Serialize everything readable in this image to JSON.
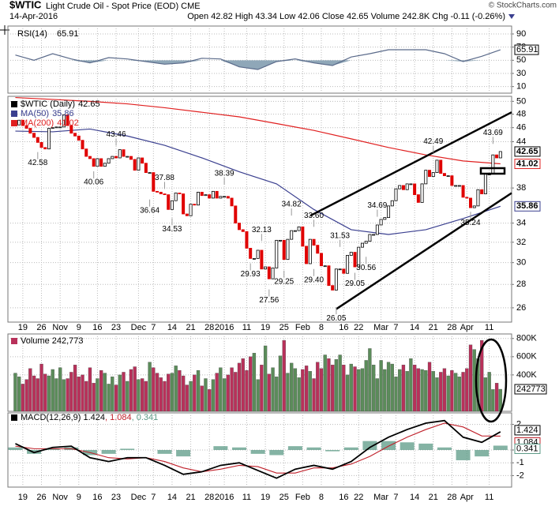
{
  "header": {
    "symbol": "$WTIC",
    "title": "Light Crude Oil - Spot Price (EOD) CME",
    "date": "14-Apr-2016",
    "quote": "Open 42.82 High 43.34 Low 42.06 Close 42.65 Volume 242.8K Chg -0.11 (-0.26%)",
    "credit": "© StockCharts.com"
  },
  "x_axis": {
    "xlim": [
      -2,
      133
    ],
    "xticks": [
      {
        "value": 2,
        "label": "19"
      },
      {
        "value": 7,
        "label": "26"
      },
      {
        "value": 12,
        "label": "Nov"
      },
      {
        "value": 17,
        "label": "9"
      },
      {
        "value": 22,
        "label": "16"
      },
      {
        "value": 27,
        "label": "23"
      },
      {
        "value": 33,
        "label": "Dec"
      },
      {
        "value": 37,
        "label": "7"
      },
      {
        "value": 42,
        "label": "14"
      },
      {
        "value": 47,
        "label": "21"
      },
      {
        "value": 52,
        "label": "28"
      },
      {
        "value": 56,
        "label": "2016"
      },
      {
        "value": 62,
        "label": "11"
      },
      {
        "value": 67,
        "label": "19"
      },
      {
        "value": 72,
        "label": "25"
      },
      {
        "value": 77,
        "label": "Feb"
      },
      {
        "value": 82,
        "label": "8"
      },
      {
        "value": 88,
        "label": "16"
      },
      {
        "value": 92,
        "label": "22"
      },
      {
        "value": 98,
        "label": "Mar"
      },
      {
        "value": 102,
        "label": "7"
      },
      {
        "value": 107,
        "label": "14"
      },
      {
        "value": 112,
        "label": "21"
      },
      {
        "value": 117,
        "label": "28"
      },
      {
        "value": 121,
        "label": "Apr"
      },
      {
        "value": 127,
        "label": "11"
      }
    ]
  },
  "chart_data": [
    {
      "type": "line",
      "title": "RSI(14)",
      "color": "#5a6a8a",
      "x": [
        0,
        5,
        10,
        15,
        20,
        25,
        30,
        35,
        40,
        45,
        50,
        55,
        60,
        65,
        70,
        75,
        80,
        85,
        90,
        95,
        100,
        105,
        110,
        115,
        120,
        125,
        130
      ],
      "values": [
        58,
        50,
        60,
        52,
        46,
        54,
        52,
        48,
        44,
        46,
        53,
        52,
        40,
        36,
        48,
        52,
        46,
        42,
        55,
        60,
        66,
        66,
        66,
        60,
        48,
        56,
        65.91
      ],
      "ylim": [
        0,
        102
      ],
      "yticks": [
        90,
        70,
        50,
        30,
        10
      ],
      "grid": true
    },
    {
      "type": "candlestick",
      "log_scale": true,
      "up_color": "#000000",
      "down_color": "#e00000",
      "close": [
        46.4,
        47.1,
        46.3,
        45.9,
        45.2,
        44.6,
        43.9,
        43.2,
        43.0,
        45.9,
        46.0,
        46.1,
        46.1,
        47.9,
        46.3,
        45.2,
        44.8,
        44.2,
        43.0,
        42.0,
        41.7,
        40.7,
        41.7,
        40.7,
        41.1,
        41.7,
        42.0,
        41.8,
        42.9,
        42.0,
        42.0,
        41.6,
        40.2,
        41.8,
        41.1,
        39.9,
        39.9,
        37.6,
        37.5,
        37.3,
        37.2,
        35.5,
        36.5,
        37.4,
        37.3,
        35.0,
        34.8,
        36.1,
        36.0,
        37.5,
        37.1,
        37.2,
        36.8,
        37.6,
        36.8,
        37.0,
        37.0,
        36.8,
        35.9,
        34.0,
        33.3,
        33.1,
        31.4,
        30.4,
        30.4,
        31.2,
        29.4,
        29.6,
        28.5,
        29.5,
        32.2,
        32.2,
        30.3,
        32.3,
        33.2,
        33.2,
        33.6,
        31.6,
        29.9,
        32.3,
        31.7,
        30.9,
        29.7,
        29.7,
        27.9,
        27.5,
        29.4,
        29.4,
        29.0,
        30.7,
        31.0,
        29.6,
        31.5,
        31.9,
        32.1,
        32.8,
        32.8,
        33.8,
        34.4,
        34.6,
        35.9,
        36.5,
        37.9,
        38.3,
        37.8,
        38.5,
        38.5,
        37.2,
        36.3,
        38.5,
        40.2,
        39.4,
        39.9,
        41.5,
        39.8,
        39.5,
        39.5,
        38.3,
        38.3,
        38.3,
        36.9,
        36.8,
        35.7,
        35.9,
        37.8,
        37.3,
        39.7,
        39.7,
        42.2,
        41.8,
        42.65
      ],
      "series": [
        {
          "name": "$WTIC (Daily)",
          "color": "#000000",
          "role": "price"
        },
        {
          "name": "MA(50)",
          "color": "#3a3f8f",
          "x": [
            0,
            10,
            20,
            30,
            40,
            50,
            60,
            70,
            80,
            90,
            100,
            110,
            120,
            130
          ],
          "values": [
            45.5,
            45.4,
            45.8,
            44.8,
            43.5,
            41.8,
            40.0,
            38.5,
            35.5,
            33.3,
            32.8,
            33.3,
            34.5,
            35.86
          ]
        },
        {
          "name": "MA(200)",
          "color": "#e02020",
          "x": [
            0,
            10,
            20,
            30,
            40,
            50,
            60,
            70,
            80,
            90,
            100,
            110,
            120,
            130
          ],
          "values": [
            50.6,
            50.3,
            50.0,
            49.6,
            49.0,
            48.3,
            47.6,
            46.6,
            45.6,
            44.4,
            43.2,
            42.2,
            41.4,
            41.02
          ]
        }
      ],
      "ylim": [
        24.85,
        50.8
      ],
      "yticks": [
        50,
        48,
        46,
        44,
        38,
        34,
        32,
        30,
        28,
        26
      ],
      "grid": true,
      "trendlines": [
        {
          "x": [
            79,
            133
          ],
          "y": [
            34.8,
            48.3
          ]
        },
        {
          "x": [
            86,
            133
          ],
          "y": [
            25.9,
            37.4
          ]
        }
      ],
      "annotations": [
        {
          "value": 42.58,
          "label": "42.58",
          "x": 6,
          "pos": "below"
        },
        {
          "value": 43.46,
          "label": "43.46",
          "x": 27,
          "pos": "above"
        },
        {
          "value": 40.06,
          "label": "40.06",
          "x": 21,
          "pos": "below"
        },
        {
          "value": 37.88,
          "label": "37.88",
          "x": 40,
          "pos": "above"
        },
        {
          "value": 36.64,
          "label": "36.64",
          "x": 36,
          "pos": "below"
        },
        {
          "value": 34.53,
          "label": "34.53",
          "x": 42,
          "pos": "below"
        },
        {
          "value": 38.39,
          "label": "38.39",
          "x": 56,
          "pos": "above"
        },
        {
          "value": 32.13,
          "label": "32.13",
          "x": 66,
          "pos": "above"
        },
        {
          "value": 29.93,
          "label": "29.93",
          "x": 63,
          "pos": "below"
        },
        {
          "value": 27.56,
          "label": "27.56",
          "x": 68,
          "pos": "below"
        },
        {
          "value": 34.82,
          "label": "34.82",
          "x": 74,
          "pos": "above"
        },
        {
          "value": 33.6,
          "label": "33.60",
          "x": 80,
          "pos": "above"
        },
        {
          "value": 29.25,
          "label": "29.25",
          "x": 72,
          "pos": "below"
        },
        {
          "value": 29.4,
          "label": "29.40",
          "x": 80,
          "pos": "below"
        },
        {
          "value": 31.53,
          "label": "31.53",
          "x": 87,
          "pos": "above"
        },
        {
          "value": 29.05,
          "label": "29.05",
          "x": 91,
          "pos": "below"
        },
        {
          "value": 26.05,
          "label": "26.05",
          "x": 86,
          "pos": "below"
        },
        {
          "value": 30.56,
          "label": "30.56",
          "x": 94,
          "pos": "below"
        },
        {
          "value": 34.69,
          "label": "34.69",
          "x": 97,
          "pos": "above"
        },
        {
          "value": 42.49,
          "label": "42.49",
          "x": 112,
          "pos": "above"
        },
        {
          "value": 35.24,
          "label": "35.24",
          "x": 122,
          "pos": "below"
        },
        {
          "value": 43.69,
          "label": "43.69",
          "x": 128,
          "pos": "above"
        }
      ]
    },
    {
      "type": "bar",
      "title": "Volume 242,773",
      "up_color": "#5b8c5a",
      "down_color": "#b8315a",
      "values": [
        420000,
        380000,
        300000,
        350000,
        470000,
        390000,
        360000,
        520000,
        410000,
        390000,
        460000,
        360000,
        480000,
        350000,
        360000,
        430000,
        510000,
        380000,
        400000,
        330000,
        480000,
        310000,
        360000,
        450000,
        420000,
        300000,
        380000,
        290000,
        400000,
        430000,
        330000,
        460000,
        490000,
        350000,
        360000,
        330000,
        540000,
        480000,
        420000,
        370000,
        330000,
        410000,
        420000,
        500000,
        450000,
        390000,
        290000,
        330000,
        400000,
        450000,
        280000,
        360000,
        240000,
        350000,
        420000,
        480000,
        360000,
        400000,
        480000,
        430000,
        530000,
        580000,
        450000,
        600000,
        640000,
        350000,
        510000,
        720000,
        410000,
        480000,
        380000,
        610000,
        780000,
        420000,
        530000,
        470000,
        370000,
        460000,
        500000,
        440000,
        360000,
        540000,
        470000,
        620000,
        580000,
        510000,
        570000,
        620000,
        510000,
        400000,
        520000,
        490000,
        460000,
        470000,
        560000,
        690000,
        510000,
        360000,
        560000,
        460000,
        540000,
        520000,
        380000,
        460000,
        510000,
        440000,
        580000,
        510000,
        470000,
        460000,
        450000,
        540000,
        440000,
        370000,
        430000,
        470000,
        390000,
        450000,
        420000,
        380000,
        430000,
        470000,
        730000,
        680000,
        580000,
        780000,
        370000,
        430000,
        240000,
        310000,
        242773
      ],
      "ylim": [
        0,
        850000
      ],
      "yticks": [
        {
          "value": 800000,
          "label": "800K"
        },
        {
          "value": 600000,
          "label": "600K"
        },
        {
          "value": 400000,
          "label": "400K"
        }
      ],
      "grid": true
    },
    {
      "type": "line",
      "legend": [
        "MACD(12,26,9) 1.424",
        ", 1.084",
        ", 0.341"
      ],
      "x": [
        0,
        5,
        10,
        15,
        20,
        25,
        30,
        35,
        40,
        45,
        50,
        55,
        60,
        65,
        70,
        75,
        80,
        85,
        90,
        95,
        100,
        105,
        110,
        115,
        120,
        125,
        130
      ],
      "series": [
        {
          "name": "MACD",
          "color": "#000000",
          "values": [
            0.5,
            -0.2,
            0.2,
            0.3,
            -0.6,
            -0.9,
            -0.6,
            -0.6,
            -1.2,
            -1.9,
            -1.7,
            -1.2,
            -1.0,
            -1.6,
            -2.2,
            -1.5,
            -1.2,
            -1.5,
            -0.9,
            0.2,
            1.0,
            1.6,
            2.1,
            2.3,
            1.0,
            0.6,
            1.424
          ]
        },
        {
          "name": "Signal",
          "color": "#c0202a",
          "values": [
            0.3,
            0.1,
            0.1,
            0.1,
            -0.2,
            -0.6,
            -0.7,
            -0.6,
            -0.9,
            -1.4,
            -1.7,
            -1.5,
            -1.2,
            -1.3,
            -1.8,
            -1.8,
            -1.4,
            -1.4,
            -1.1,
            -0.5,
            0.3,
            1.0,
            1.6,
            2.1,
            1.8,
            1.1,
            1.084
          ]
        },
        {
          "name": "Histogram",
          "color": "#5b9a86",
          "values": [
            0.2,
            -0.3,
            0.1,
            0.2,
            -0.4,
            -0.3,
            0.1,
            0,
            -0.3,
            -0.5,
            0,
            0.3,
            0.2,
            -0.3,
            -0.4,
            0.3,
            0.2,
            -0.1,
            0.2,
            0.7,
            0.7,
            0.6,
            0.5,
            0.2,
            -0.8,
            -0.5,
            0.341
          ]
        }
      ],
      "ylim": [
        -2.9,
        2.9
      ],
      "yticks": [
        2,
        0,
        -1,
        -2
      ],
      "grid": true
    }
  ]
}
